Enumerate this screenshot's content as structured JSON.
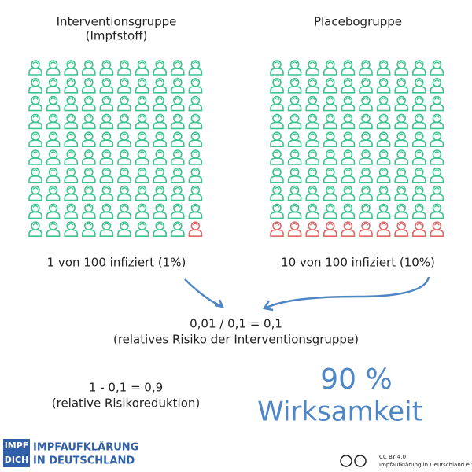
{
  "groups": [
    {
      "title": "Interventionsgruppe",
      "subtitle": "(Impfstoff)",
      "total": 100,
      "infected": 1,
      "result": "1 von 100 infiziert (1%)"
    },
    {
      "title": "Placebogruppe",
      "total": 100,
      "infected": 10,
      "result": "10 von 100 infiziert (10%)"
    }
  ],
  "formula": {
    "equation": "0,01 / 0,1 = 0,1",
    "caption": "(relatives Risiko der Interventionsgruppe)"
  },
  "reduction": {
    "equation": "1 - 0,1 = 0,9",
    "caption": "(relative Risikoreduktion)"
  },
  "efficacy": {
    "value": "90 %",
    "label": "Wirksamkeit"
  },
  "logo": {
    "badge_top": "IMPF",
    "badge_bottom": "DICH",
    "line1": "IMPFAUFKLÄRUNG",
    "line2": "IN DEUTSCHLAND"
  },
  "license": {
    "line1": "CC BY 4.0",
    "line2": "Impfaufklärung in Deutschland e.V."
  }
}
